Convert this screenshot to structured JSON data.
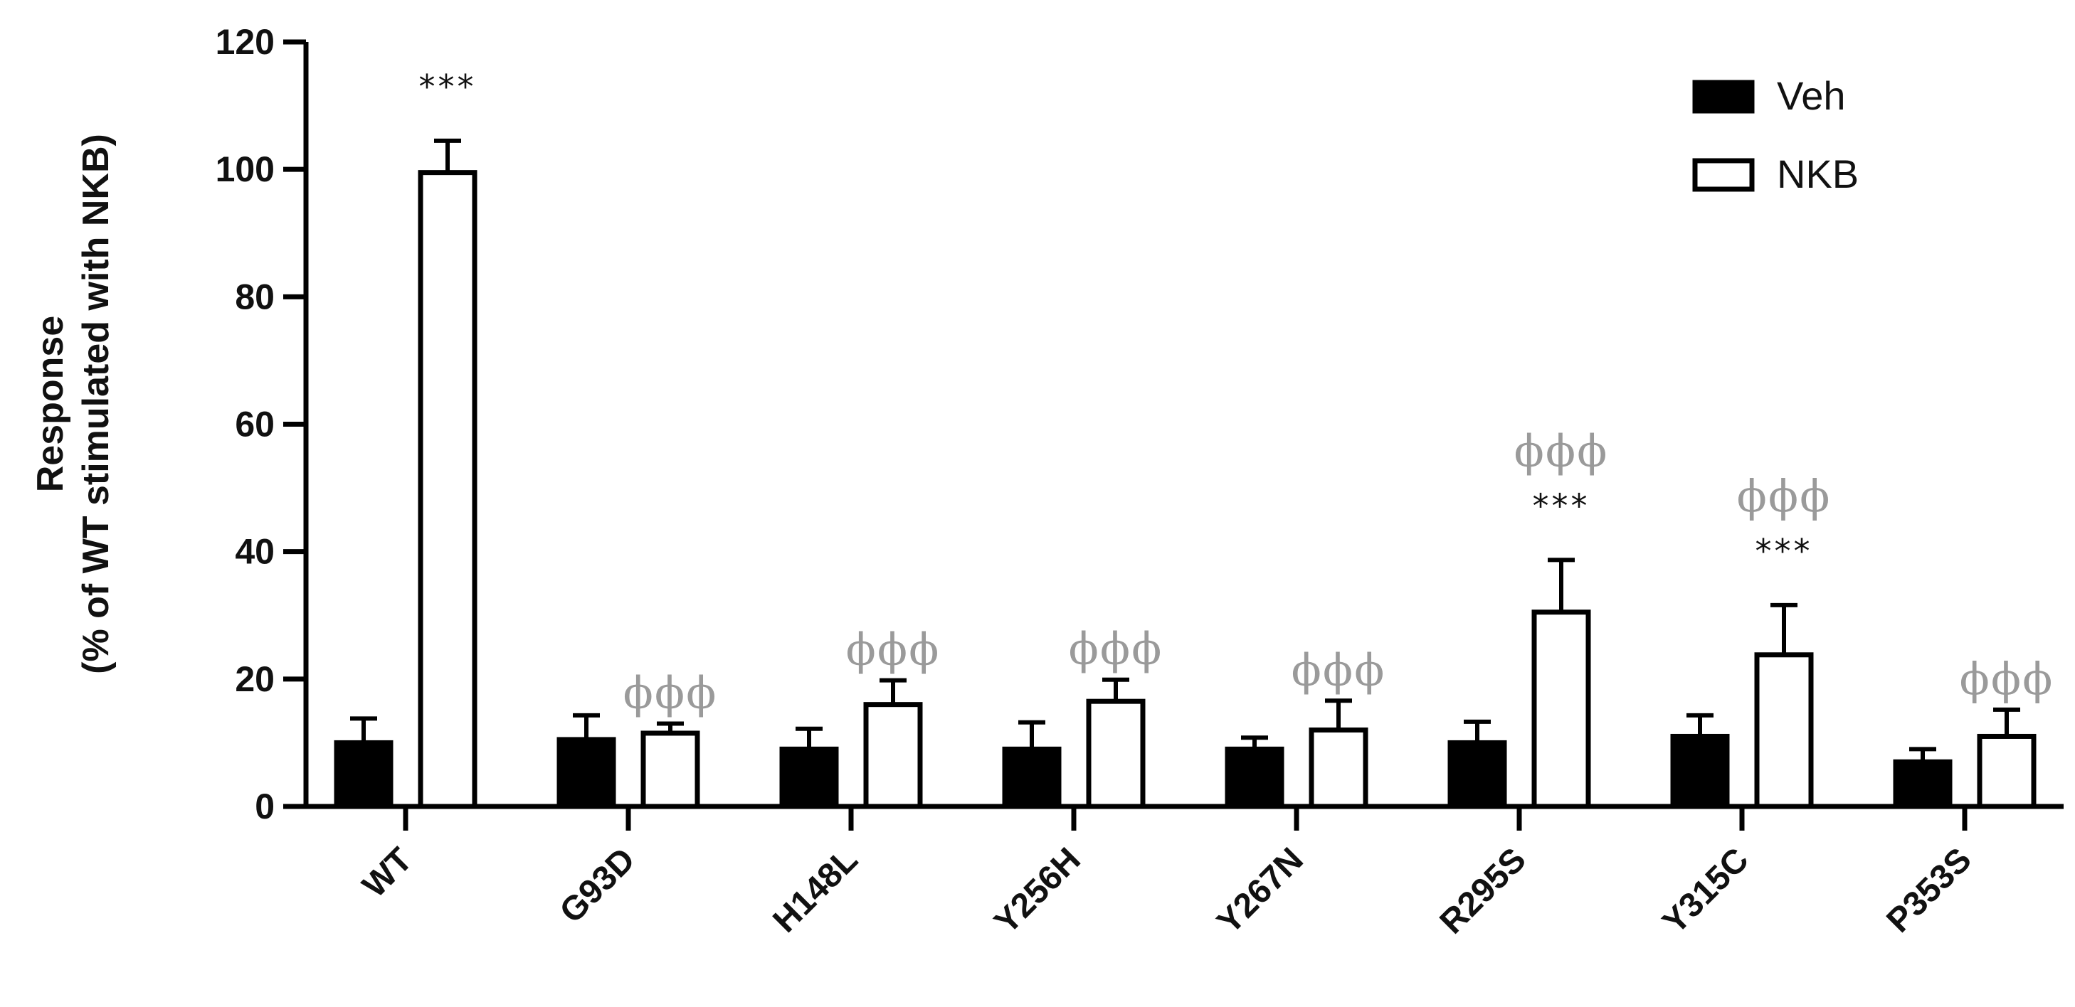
{
  "chart_data": {
    "type": "bar",
    "ylabel_line1": "Response",
    "ylabel_line2": "(% of WT stimulated with NKB)",
    "ylim": [
      0,
      120
    ],
    "yticks": [
      "0",
      "20",
      "40",
      "60",
      "80",
      "100",
      "120"
    ],
    "legend_position": "top-right",
    "categories": [
      "WT",
      "G93D",
      "H148L",
      "Y256H",
      "Y267N",
      "R295S",
      "Y315C",
      "P353S"
    ],
    "series": [
      {
        "name": "Veh",
        "fill": "#000000",
        "values": [
          10,
          10.5,
          9,
          9,
          9,
          10,
          11,
          7
        ],
        "errors": [
          3.8,
          3.8,
          3.2,
          4.2,
          1.8,
          3.3,
          3.3,
          2
        ]
      },
      {
        "name": "NKB",
        "fill": "#ffffff",
        "values": [
          99.5,
          11.5,
          16,
          16.5,
          12,
          30.5,
          23.8,
          11
        ],
        "errors": [
          5,
          1.5,
          3.8,
          3.4,
          4.6,
          8.2,
          7.8,
          4.2
        ]
      }
    ],
    "annotations": [
      {
        "category": "WT",
        "stars": "***",
        "phi": ""
      },
      {
        "category": "G93D",
        "stars": "",
        "phi": "ϕϕϕ"
      },
      {
        "category": "H148L",
        "stars": "",
        "phi": "ϕϕϕ"
      },
      {
        "category": "Y256H",
        "stars": "",
        "phi": "ϕϕϕ"
      },
      {
        "category": "Y267N",
        "stars": "",
        "phi": "ϕϕϕ"
      },
      {
        "category": "R295S",
        "stars": "***",
        "phi": "ϕϕϕ"
      },
      {
        "category": "Y315C",
        "stars": "***",
        "phi": "ϕϕϕ"
      },
      {
        "category": "P353S",
        "stars": "",
        "phi": "ϕϕϕ"
      }
    ]
  }
}
